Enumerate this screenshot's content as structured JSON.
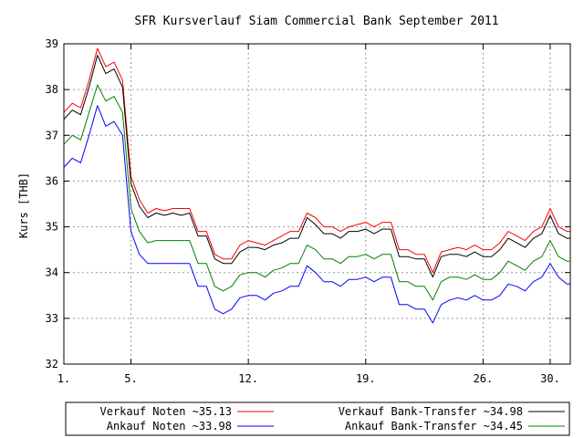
{
  "chart_data": {
    "type": "line",
    "title": "SFR Kursverlauf Siam Commercial Bank September 2011",
    "ylabel": "Kurs [THB]",
    "xlabel": "",
    "ylim": [
      32,
      39
    ],
    "xlim": [
      1,
      31.2
    ],
    "yticks": [
      "32",
      "33",
      "34",
      "35",
      "36",
      "37",
      "38",
      "39"
    ],
    "xticks": [
      {
        "value": 1,
        "label": "1."
      },
      {
        "value": 5,
        "label": "5."
      },
      {
        "value": 12,
        "label": "12."
      },
      {
        "value": 19,
        "label": "19."
      },
      {
        "value": 26,
        "label": "26."
      },
      {
        "value": 30,
        "label": "30."
      }
    ],
    "grid": true,
    "legend_position": "bottom",
    "x": [
      1,
      1.5,
      2,
      2.5,
      3,
      3.5,
      4,
      4.5,
      5,
      5.5,
      6,
      6.5,
      7,
      7.5,
      8,
      8.5,
      9,
      9.5,
      10,
      10.5,
      11,
      11.5,
      12,
      12.5,
      13,
      13.5,
      14,
      14.5,
      15,
      15.5,
      16,
      16.5,
      17,
      17.5,
      18,
      18.5,
      19,
      19.5,
      20,
      20.5,
      21,
      21.5,
      22,
      22.5,
      23,
      23.5,
      24,
      24.5,
      25,
      25.5,
      26,
      26.5,
      27,
      27.5,
      28,
      28.5,
      29,
      29.5,
      30,
      30.5,
      31,
      31.2
    ],
    "series": [
      {
        "name": "Verkauf Noten ~35.13",
        "color": "#ff0000",
        "values": [
          37.5,
          37.7,
          37.6,
          38.2,
          38.9,
          38.5,
          38.6,
          38.2,
          36.1,
          35.6,
          35.3,
          35.4,
          35.35,
          35.4,
          35.4,
          35.4,
          34.9,
          34.9,
          34.4,
          34.3,
          34.3,
          34.6,
          34.7,
          34.65,
          34.6,
          34.7,
          34.8,
          34.9,
          34.9,
          35.3,
          35.2,
          35.0,
          35.0,
          34.9,
          35.0,
          35.05,
          35.1,
          35.0,
          35.1,
          35.1,
          34.5,
          34.5,
          34.4,
          34.4,
          34.0,
          34.45,
          34.5,
          34.55,
          34.5,
          34.6,
          34.5,
          34.5,
          34.65,
          34.9,
          34.8,
          34.7,
          34.9,
          35.0,
          35.4,
          35.0,
          34.9,
          34.9
        ]
      },
      {
        "name": "Ankauf Noten ~33.98",
        "color": "#0000ff",
        "values": [
          36.3,
          36.5,
          36.4,
          37.0,
          37.65,
          37.2,
          37.3,
          37.0,
          34.9,
          34.4,
          34.2,
          34.2,
          34.2,
          34.2,
          34.2,
          34.2,
          33.7,
          33.7,
          33.2,
          33.1,
          33.2,
          33.45,
          33.5,
          33.5,
          33.4,
          33.55,
          33.6,
          33.7,
          33.7,
          34.15,
          34.0,
          33.8,
          33.8,
          33.7,
          33.85,
          33.85,
          33.9,
          33.8,
          33.9,
          33.9,
          33.3,
          33.3,
          33.2,
          33.2,
          32.9,
          33.3,
          33.4,
          33.45,
          33.4,
          33.5,
          33.4,
          33.4,
          33.5,
          33.75,
          33.7,
          33.6,
          33.8,
          33.9,
          34.2,
          33.9,
          33.75,
          33.75
        ]
      },
      {
        "name": "Verkauf Bank-Transfer ~34.98",
        "color": "#000000",
        "values": [
          37.35,
          37.55,
          37.45,
          38.05,
          38.75,
          38.35,
          38.45,
          38.05,
          35.95,
          35.45,
          35.2,
          35.3,
          35.25,
          35.3,
          35.25,
          35.3,
          34.8,
          34.8,
          34.3,
          34.2,
          34.2,
          34.45,
          34.55,
          34.55,
          34.5,
          34.6,
          34.65,
          34.75,
          34.75,
          35.2,
          35.05,
          34.85,
          34.85,
          34.75,
          34.9,
          34.9,
          34.95,
          34.85,
          34.95,
          34.95,
          34.35,
          34.35,
          34.3,
          34.3,
          33.9,
          34.35,
          34.4,
          34.4,
          34.35,
          34.45,
          34.35,
          34.35,
          34.5,
          34.75,
          34.65,
          34.55,
          34.75,
          34.85,
          35.25,
          34.85,
          34.75,
          34.75
        ]
      },
      {
        "name": "Ankauf Bank-Transfer ~34.45",
        "color": "#008000",
        "values": [
          36.8,
          37.0,
          36.9,
          37.5,
          38.1,
          37.75,
          37.85,
          37.5,
          35.4,
          34.9,
          34.65,
          34.7,
          34.7,
          34.7,
          34.7,
          34.7,
          34.2,
          34.2,
          33.7,
          33.6,
          33.7,
          33.95,
          34.0,
          34.0,
          33.9,
          34.05,
          34.1,
          34.2,
          34.2,
          34.6,
          34.5,
          34.3,
          34.3,
          34.2,
          34.35,
          34.35,
          34.4,
          34.3,
          34.4,
          34.4,
          33.8,
          33.8,
          33.7,
          33.7,
          33.4,
          33.8,
          33.9,
          33.9,
          33.85,
          33.95,
          33.85,
          33.85,
          34.0,
          34.25,
          34.15,
          34.05,
          34.25,
          34.35,
          34.7,
          34.35,
          34.25,
          34.25
        ]
      }
    ]
  }
}
